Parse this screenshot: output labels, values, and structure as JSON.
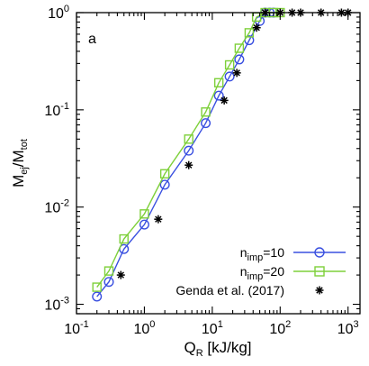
{
  "chart_data": {
    "type": "scatter",
    "panel_label": "a",
    "xlabel": {
      "main": "Q",
      "sub": "R",
      "rest": " [kJ/kg]"
    },
    "ylabel": {
      "main1": "M",
      "sub1": "ej",
      "mid": "/M",
      "sub2": "tot"
    },
    "xscale": "log",
    "yscale": "log",
    "xlim": [
      0.1,
      1500
    ],
    "ylim": [
      0.0008,
      1.0
    ],
    "x_ticks": [
      {
        "base": "10",
        "exp": "-1",
        "value": 0.1
      },
      {
        "base": "10",
        "exp": "0",
        "value": 1
      },
      {
        "base": "10",
        "exp": "1",
        "value": 10
      },
      {
        "base": "10",
        "exp": "2",
        "value": 100
      },
      {
        "base": "10",
        "exp": "3",
        "value": 1000
      }
    ],
    "y_ticks": [
      {
        "base": "10",
        "exp": "-3",
        "value": 0.001
      },
      {
        "base": "10",
        "exp": "-2",
        "value": 0.01
      },
      {
        "base": "10",
        "exp": "-1",
        "value": 0.1
      },
      {
        "base": "10",
        "exp": "0",
        "value": 1
      }
    ],
    "grid": false,
    "legend_position": "bottom-right",
    "series": [
      {
        "name": "n",
        "name_sub": "imp",
        "name_rest": "=10",
        "color": "#3a50e0",
        "marker": "circle",
        "line": true,
        "x": [
          0.2,
          0.3,
          0.5,
          1.0,
          2.0,
          4.5,
          8.0,
          12.5,
          18.0,
          25.0,
          35.0,
          50.0,
          60.0,
          70.0,
          80.0
        ],
        "y": [
          0.0012,
          0.0017,
          0.0037,
          0.0066,
          0.017,
          0.038,
          0.073,
          0.14,
          0.22,
          0.33,
          0.52,
          0.82,
          1.0,
          1.0,
          1.0
        ]
      },
      {
        "name": "n",
        "name_sub": "imp",
        "name_rest": "=20",
        "color": "#7ed03a",
        "marker": "square",
        "line": true,
        "x": [
          0.2,
          0.3,
          0.5,
          1.0,
          2.0,
          4.5,
          8.0,
          12.5,
          18.0,
          25.0,
          35.0,
          45.0,
          60.0,
          80.0,
          100.0
        ],
        "y": [
          0.0015,
          0.0022,
          0.0047,
          0.0085,
          0.022,
          0.05,
          0.095,
          0.19,
          0.29,
          0.43,
          0.62,
          0.9,
          1.0,
          1.0,
          1.0
        ]
      },
      {
        "name": "Genda et al. (2017)",
        "color": "#000000",
        "marker": "asterisk",
        "line": false,
        "x": [
          0.45,
          1.6,
          4.5,
          15.0,
          23.0,
          45.0,
          60.0,
          100.0,
          150.0,
          200.0,
          400.0,
          800.0,
          1000.0
        ],
        "y": [
          0.002,
          0.0075,
          0.027,
          0.125,
          0.24,
          0.7,
          1.0,
          1.0,
          1.0,
          1.0,
          1.0,
          1.0,
          1.0
        ]
      }
    ]
  }
}
